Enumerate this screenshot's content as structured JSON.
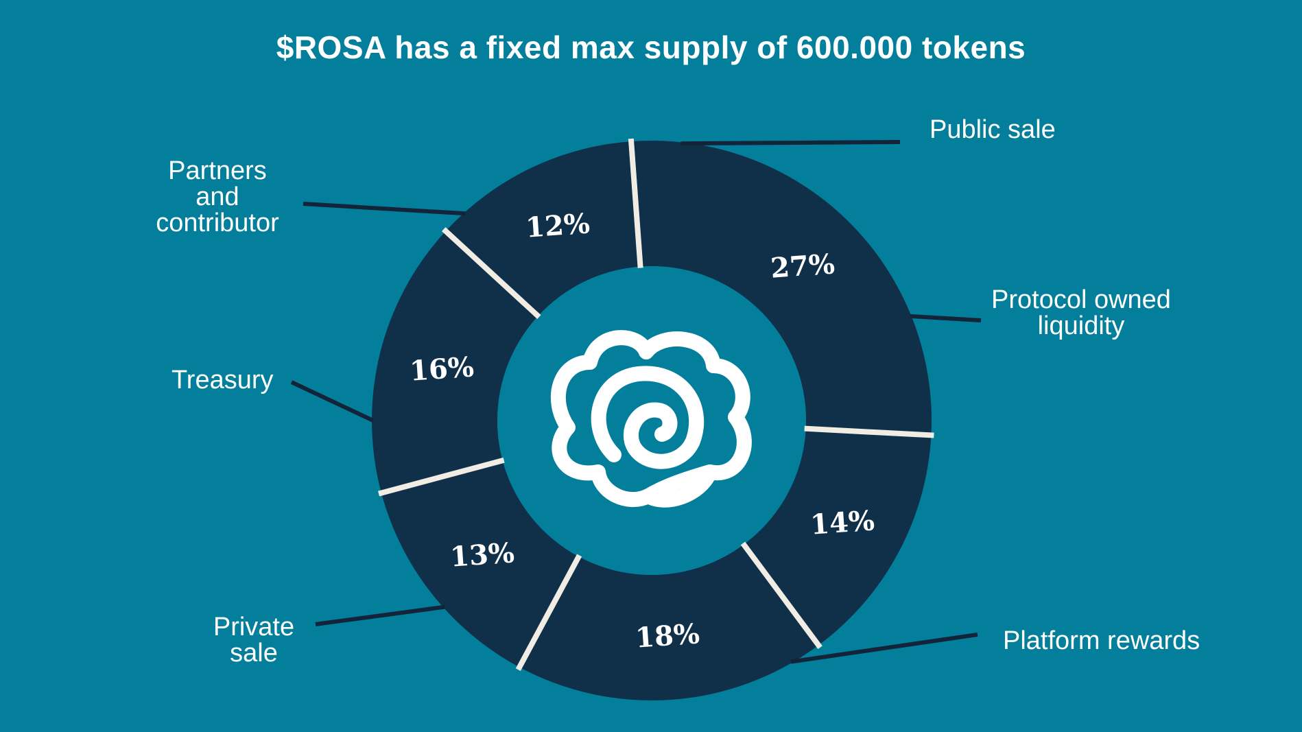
{
  "title": "$ROSA has a fixed max supply of 600.000 tokens",
  "colors": {
    "background": "#047f9b",
    "segment": "#10304a",
    "separator": "#f1ece4",
    "leader": "#12243a",
    "text": "#ffffff"
  },
  "center_icon": "rose-logo-icon",
  "chart_data": {
    "type": "pie",
    "title": "$ROSA has a fixed max supply of 600.000 tokens",
    "series": [
      {
        "categories": [
          "Public sale",
          "Protocol owned liquidity",
          "Platform rewards",
          "Private sale",
          "Treasury",
          "Partners and contributor"
        ],
        "values": [
          16,
          12,
          27,
          14,
          18,
          13
        ],
        "value_labels": [
          "16%",
          "12%",
          "27%",
          "14%",
          "18%",
          "13%"
        ]
      }
    ],
    "legend_lines": [
      [
        "Public sale"
      ],
      [
        "Protocol owned",
        "liquidity"
      ],
      [
        "Platform rewards"
      ],
      [
        "Private",
        "sale"
      ],
      [
        "Treasury"
      ],
      [
        "Partners",
        "and",
        "contributor"
      ]
    ]
  }
}
